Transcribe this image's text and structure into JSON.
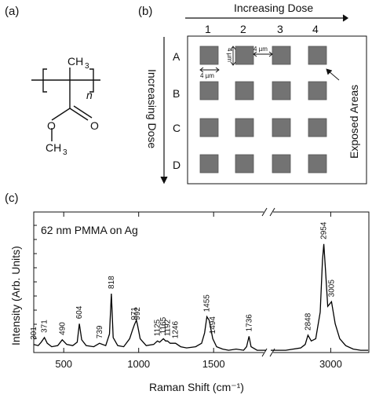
{
  "panels": {
    "a": "(a)",
    "b": "(b)",
    "c": "(c)"
  },
  "molecule": {
    "ch3_top": "CH",
    "sub3_top": "3",
    "n": "n",
    "o_carbonyl": "O",
    "o_ester": "O",
    "ch3_bottom": "CH",
    "sub3_bottom": "3"
  },
  "grid": {
    "top_label": "Increasing Dose",
    "left_label": "Increasing Dose",
    "columns": [
      "1",
      "2",
      "3",
      "4"
    ],
    "rows": [
      "A",
      "B",
      "C",
      "D"
    ],
    "dim_width": "4 µm",
    "dim_height": "4 µm",
    "dim_gap": "4 µm",
    "exposed_label": "Exposed Areas",
    "colors": {
      "square": "#737373",
      "square_edge": "#555555"
    }
  },
  "chart_data": {
    "type": "line",
    "title": "62 nm PMMA on Ag",
    "xlabel": "Raman Shift (cm⁻¹)",
    "ylabel": "Intensity (Arb. Units)",
    "x_ticks": [
      "500",
      "1000",
      "1500",
      "3000"
    ],
    "x_tick_values": [
      500,
      1000,
      1500,
      3000
    ],
    "axis_break": [
      1850,
      2600
    ],
    "xlim_segments": [
      [
        300,
        1850
      ],
      [
        2600,
        3250
      ]
    ],
    "peak_labels": [
      {
        "x": 301,
        "label": "301"
      },
      {
        "x": 371,
        "label": "371"
      },
      {
        "x": 490,
        "label": "490"
      },
      {
        "x": 604,
        "label": "604"
      },
      {
        "x": 739,
        "label": "739"
      },
      {
        "x": 818,
        "label": "818"
      },
      {
        "x": 971,
        "label": "971"
      },
      {
        "x": 992,
        "label": "992"
      },
      {
        "x": 1125,
        "label": "1125"
      },
      {
        "x": 1165,
        "label": "1165"
      },
      {
        "x": 1192,
        "label": "1192"
      },
      {
        "x": 1246,
        "label": "1246"
      },
      {
        "x": 1455,
        "label": "1455"
      },
      {
        "x": 1494,
        "label": "1494"
      },
      {
        "x": 1736,
        "label": "1736"
      },
      {
        "x": 2848,
        "label": "2848"
      },
      {
        "x": 2954,
        "label": "2954"
      },
      {
        "x": 3005,
        "label": "3005"
      }
    ],
    "series": [
      {
        "x": [
          300,
          330,
          350,
          371,
          390,
          420,
          460,
          490,
          520,
          560,
          590,
          604,
          620,
          650,
          700,
          739,
          780,
          805,
          818,
          830,
          860,
          900,
          940,
          960,
          971,
          985,
          992,
          1010,
          1050,
          1100,
          1125,
          1140,
          1165,
          1180,
          1192,
          1210,
          1246,
          1280,
          1320,
          1380,
          1420,
          1440,
          1455,
          1470,
          1494,
          1520,
          1560,
          1600,
          1650,
          1700,
          1720,
          1736,
          1750,
          1790,
          1850,
          2600,
          2700,
          2800,
          2830,
          2848,
          2870,
          2900,
          2930,
          2945,
          2954,
          2965,
          2980,
          3005,
          3030,
          3060,
          3100,
          3150,
          3200,
          3250
        ],
        "values": [
          0.07,
          0.06,
          0.09,
          0.13,
          0.08,
          0.05,
          0.06,
          0.11,
          0.07,
          0.06,
          0.09,
          0.25,
          0.11,
          0.06,
          0.05,
          0.08,
          0.06,
          0.16,
          0.51,
          0.13,
          0.06,
          0.05,
          0.12,
          0.2,
          0.24,
          0.28,
          0.24,
          0.12,
          0.06,
          0.07,
          0.1,
          0.09,
          0.12,
          0.1,
          0.1,
          0.08,
          0.08,
          0.05,
          0.04,
          0.05,
          0.08,
          0.17,
          0.31,
          0.28,
          0.12,
          0.05,
          0.03,
          0.02,
          0.03,
          0.02,
          0.05,
          0.14,
          0.05,
          0.02,
          0.02,
          0.02,
          0.02,
          0.04,
          0.07,
          0.15,
          0.1,
          0.12,
          0.35,
          0.8,
          0.94,
          0.72,
          0.4,
          0.44,
          0.25,
          0.12,
          0.06,
          0.03,
          0.02,
          0.02
        ]
      }
    ]
  }
}
